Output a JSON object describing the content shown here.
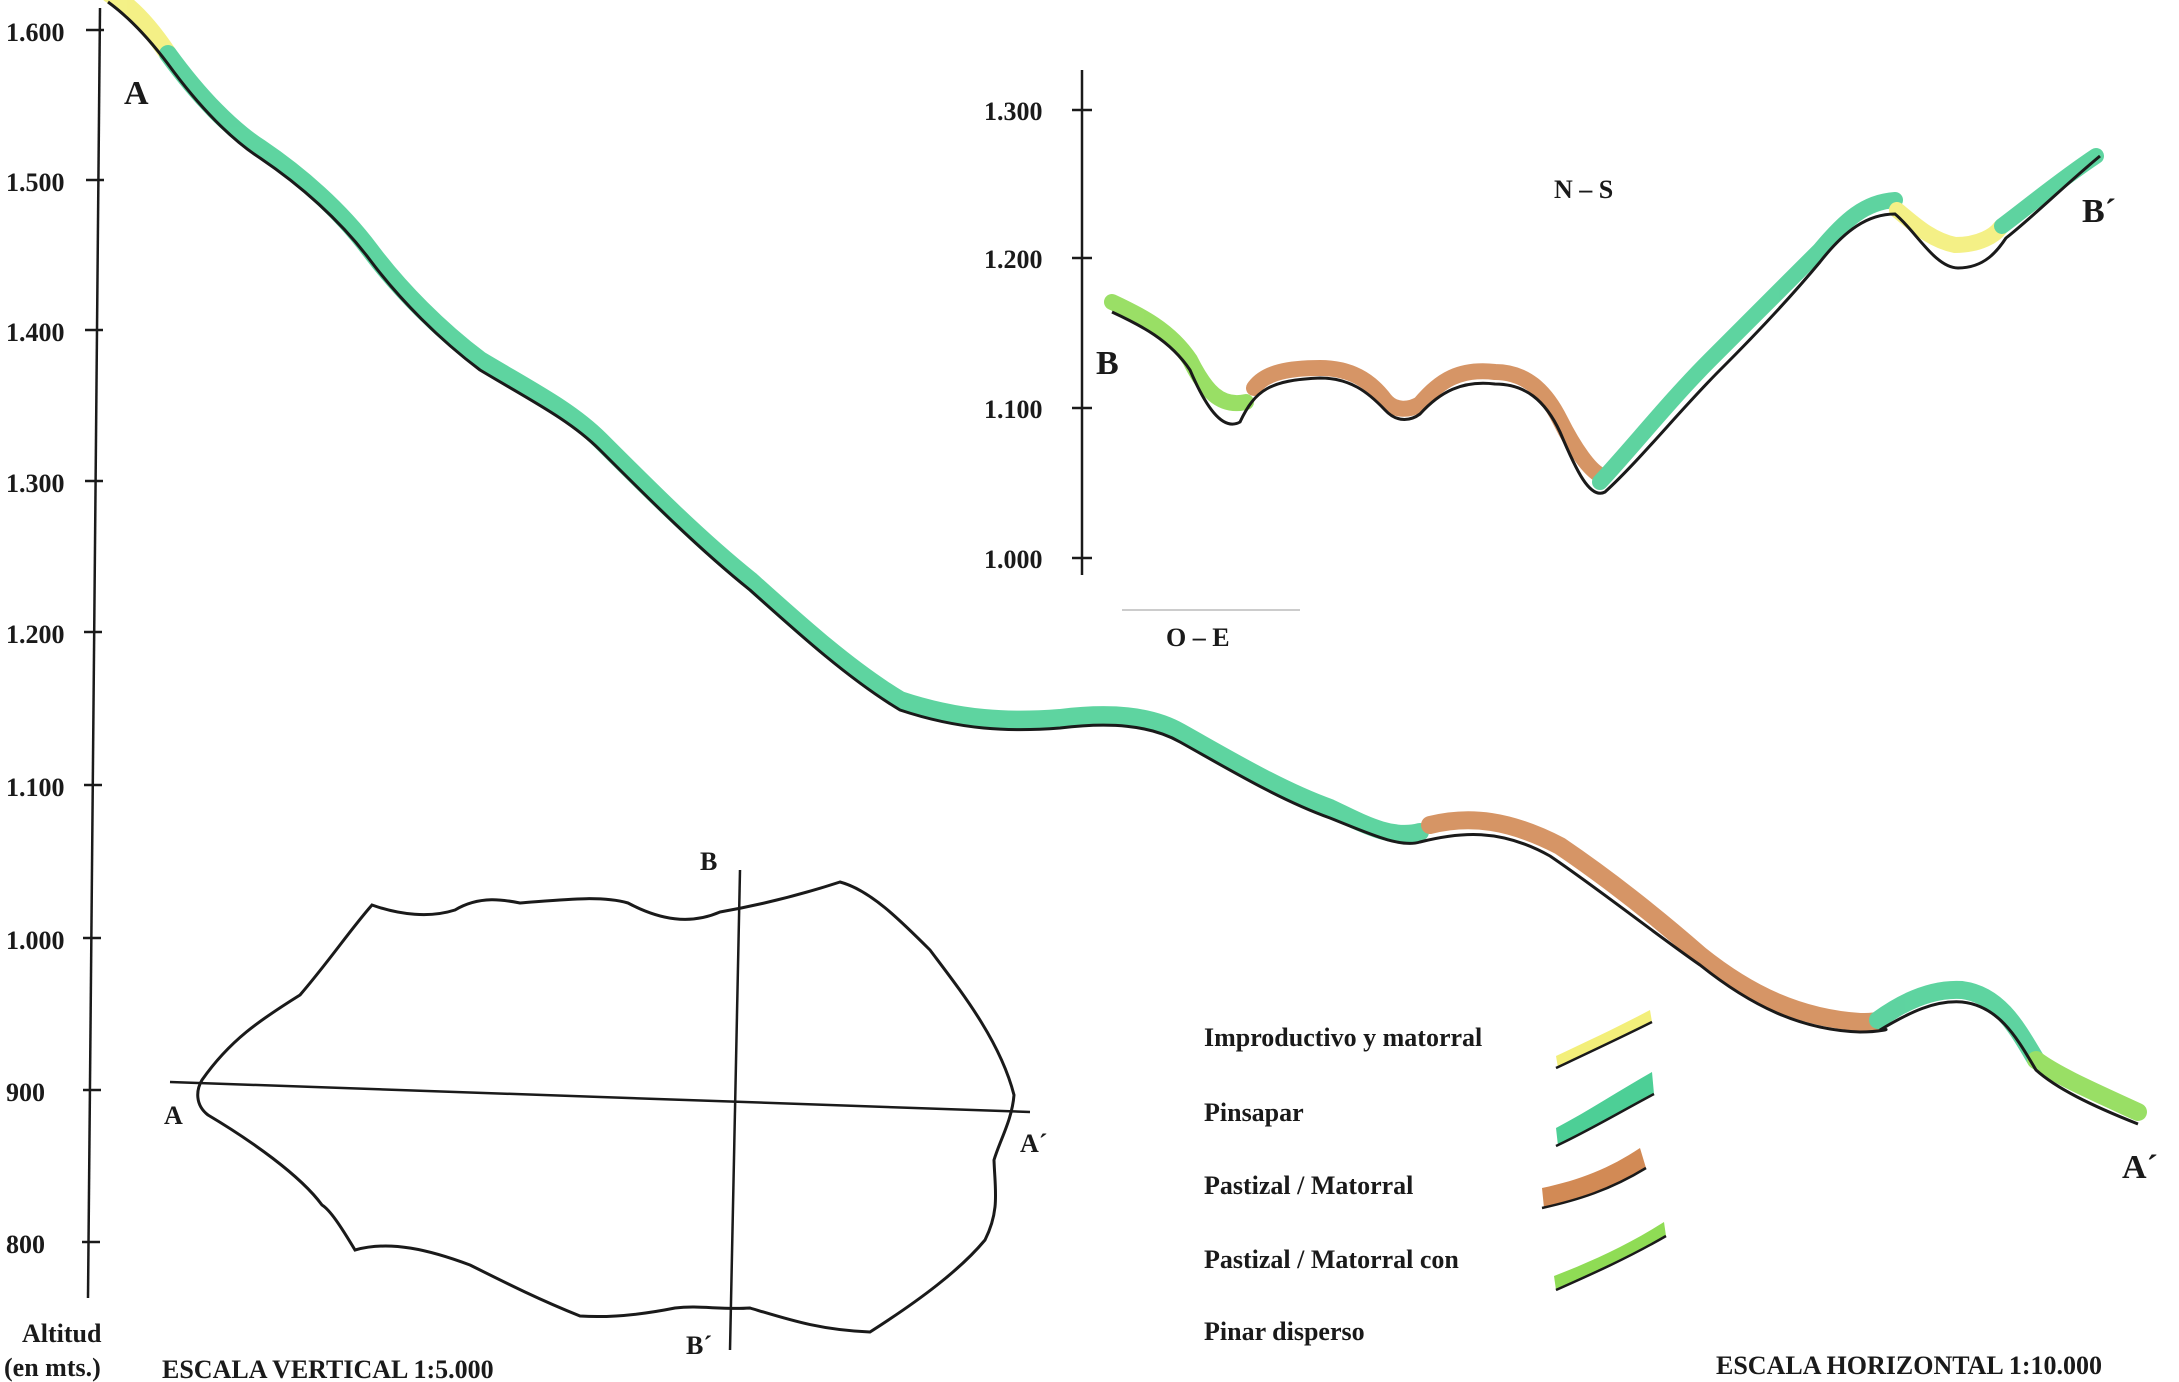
{
  "main_profile": {
    "y_axis": {
      "ticks": [
        "1.600",
        "1.500",
        "1.400",
        "1.300",
        "1.200",
        "1.100",
        "1.000",
        "900",
        "800"
      ],
      "title_line1": "Altitud",
      "title_line2": "(en mts.)"
    },
    "start_label": "A",
    "end_label": "A´",
    "segment_colors": [
      "#f3ef7a",
      "#4dcf96",
      "#d28a55",
      "#4dcf96",
      "#8fdc55"
    ]
  },
  "scales": {
    "vertical": "ESCALA VERTICAL  1:5.000",
    "horizontal": "ESCALA HORIZONTAL  1:10.000"
  },
  "inset_profile": {
    "y_axis": {
      "ticks": [
        "1.300",
        "1.200",
        "1.100",
        "1.000"
      ]
    },
    "direction_top": "N – S",
    "direction_bottom": "O – E",
    "start_label": "B",
    "end_label": "B´"
  },
  "map": {
    "labels": {
      "a": "A",
      "a_prime": "A´",
      "b": "B",
      "b_prime": "B´"
    }
  },
  "legend": {
    "items": [
      {
        "label": "Improductivo y matorral",
        "color": "#f3ef7a"
      },
      {
        "label": "Pinsapar",
        "color": "#4dcf96"
      },
      {
        "label": "Pastizal / Matorral",
        "color": "#d28a55"
      },
      {
        "label": "Pastizal / Matorral con",
        "color": "#8fdc55"
      }
    ],
    "last_line": "Pinar disperso"
  }
}
